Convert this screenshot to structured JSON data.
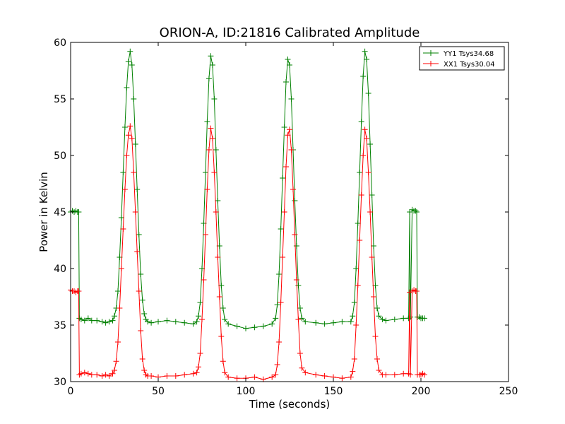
{
  "chart_data": {
    "type": "line",
    "title": "ORION-A, ID:21816 Calibrated Amplitude",
    "xlabel": "Time (seconds)",
    "ylabel": "Power in Kelvin",
    "xlim": [
      0,
      250
    ],
    "ylim": [
      30,
      60
    ],
    "xticks": [
      0,
      50,
      100,
      150,
      200,
      250
    ],
    "yticks": [
      30,
      35,
      40,
      45,
      50,
      55,
      60
    ],
    "xtick_labels": [
      "0",
      "50",
      "100",
      "150",
      "200",
      "250"
    ],
    "ytick_labels": [
      "30",
      "35",
      "40",
      "45",
      "50",
      "55",
      "60"
    ],
    "grid": false,
    "legend_position": "top-right",
    "marker": "+",
    "series": [
      {
        "name": "YY1 Tsys34.68",
        "color": "#008000",
        "x": [
          0,
          1,
          2,
          3,
          4,
          4.6,
          5,
          6,
          8,
          10,
          12,
          15,
          18,
          20,
          22,
          24,
          25,
          26,
          27,
          28,
          29,
          30,
          31,
          32,
          33,
          34,
          35,
          36,
          37,
          38,
          39,
          40,
          41,
          42,
          43,
          44,
          46,
          50,
          55,
          60,
          65,
          70,
          72,
          73,
          74,
          75,
          76,
          77,
          78,
          79,
          80,
          81,
          82,
          83,
          84,
          85,
          86,
          87,
          88,
          90,
          95,
          100,
          105,
          110,
          115,
          117,
          118,
          119,
          120,
          121,
          122,
          123,
          124,
          125,
          126,
          127,
          128,
          129,
          130,
          131,
          132,
          134,
          140,
          145,
          150,
          155,
          160,
          161,
          162,
          163,
          164,
          165,
          166,
          167,
          168,
          169,
          170,
          171,
          172,
          173,
          174,
          175,
          176,
          178,
          180,
          185,
          190,
          193,
          193.6,
          194,
          195,
          196,
          197,
          197.6,
          198,
          199,
          200,
          201,
          202
        ],
        "values": [
          45.0,
          45.1,
          45.0,
          45.1,
          45.0,
          45.0,
          35.6,
          35.5,
          35.4,
          35.6,
          35.4,
          35.4,
          35.3,
          35.2,
          35.3,
          35.4,
          35.8,
          36.5,
          38.0,
          41.0,
          44.5,
          48.5,
          52.5,
          56.0,
          58.3,
          59.2,
          58.0,
          55.0,
          51.0,
          47.0,
          43.0,
          39.5,
          37.2,
          36.0,
          35.5,
          35.3,
          35.2,
          35.3,
          35.4,
          35.3,
          35.2,
          35.1,
          35.3,
          35.8,
          37.0,
          40.0,
          44.0,
          48.5,
          53.0,
          56.8,
          58.8,
          58.0,
          55.0,
          50.5,
          46.0,
          42.0,
          38.5,
          36.5,
          35.5,
          35.1,
          34.9,
          34.7,
          34.8,
          34.9,
          35.1,
          35.6,
          36.8,
          39.5,
          43.5,
          48.0,
          52.5,
          56.5,
          58.5,
          58.0,
          55.0,
          50.5,
          46.0,
          42.0,
          38.5,
          36.5,
          35.6,
          35.3,
          35.2,
          35.1,
          35.2,
          35.3,
          35.3,
          35.8,
          37.0,
          40.0,
          44.0,
          48.5,
          53.0,
          57.0,
          59.2,
          58.5,
          55.5,
          51.0,
          46.5,
          42.0,
          38.5,
          36.5,
          35.8,
          35.5,
          35.4,
          35.5,
          35.6,
          35.6,
          45.0,
          35.7,
          45.2,
          45.1,
          45.1,
          45.0,
          35.7,
          35.7,
          35.6,
          35.6,
          35.6
        ]
      },
      {
        "name": "XX1 Tsys30.04",
        "color": "#ff0000",
        "x": [
          0,
          1,
          2,
          3,
          4,
          4.6,
          5,
          6,
          8,
          10,
          12,
          15,
          18,
          20,
          22,
          24,
          25,
          26,
          27,
          28,
          29,
          30,
          31,
          32,
          33,
          34,
          35,
          36,
          37,
          38,
          39,
          40,
          41,
          42,
          43,
          44,
          46,
          50,
          55,
          60,
          65,
          70,
          72,
          73,
          74,
          75,
          76,
          77,
          78,
          79,
          80,
          81,
          82,
          83,
          84,
          85,
          86,
          87,
          88,
          90,
          95,
          100,
          105,
          110,
          115,
          117,
          118,
          119,
          120,
          121,
          122,
          123,
          124,
          125,
          126,
          127,
          128,
          129,
          130,
          131,
          132,
          134,
          140,
          145,
          150,
          155,
          160,
          161,
          162,
          163,
          164,
          165,
          166,
          167,
          168,
          169,
          170,
          171,
          172,
          173,
          174,
          175,
          176,
          178,
          180,
          185,
          190,
          193,
          193.6,
          194,
          195,
          196,
          197,
          197.6,
          198,
          199,
          200,
          201,
          202
        ],
        "values": [
          38.1,
          38.0,
          38.0,
          37.9,
          38.0,
          38.0,
          30.6,
          30.7,
          30.8,
          30.7,
          30.6,
          30.6,
          30.5,
          30.6,
          30.5,
          30.7,
          31.0,
          31.8,
          33.5,
          36.5,
          40.0,
          43.5,
          47.0,
          50.0,
          51.8,
          52.6,
          51.5,
          48.5,
          45.0,
          41.5,
          38.0,
          34.5,
          32.0,
          31.0,
          30.6,
          30.5,
          30.5,
          30.4,
          30.5,
          30.5,
          30.6,
          30.7,
          30.8,
          31.3,
          32.5,
          35.5,
          39.0,
          43.0,
          47.0,
          50.5,
          52.4,
          51.5,
          48.5,
          45.0,
          41.0,
          37.5,
          34.0,
          31.8,
          30.8,
          30.4,
          30.3,
          30.3,
          30.4,
          30.2,
          30.4,
          30.6,
          31.5,
          33.5,
          37.0,
          41.0,
          45.0,
          49.0,
          51.8,
          52.3,
          50.5,
          47.0,
          43.0,
          39.0,
          35.5,
          32.5,
          31.2,
          30.8,
          30.6,
          30.5,
          30.4,
          30.3,
          30.4,
          30.9,
          32.0,
          35.0,
          38.5,
          42.5,
          46.5,
          50.0,
          52.3,
          51.5,
          48.5,
          45.0,
          41.0,
          37.5,
          34.0,
          32.0,
          31.0,
          30.6,
          30.6,
          30.6,
          30.7,
          30.7,
          37.9,
          30.6,
          38.0,
          38.1,
          38.0,
          38.0,
          30.6,
          30.6,
          30.6,
          30.7,
          30.6
        ]
      }
    ]
  }
}
